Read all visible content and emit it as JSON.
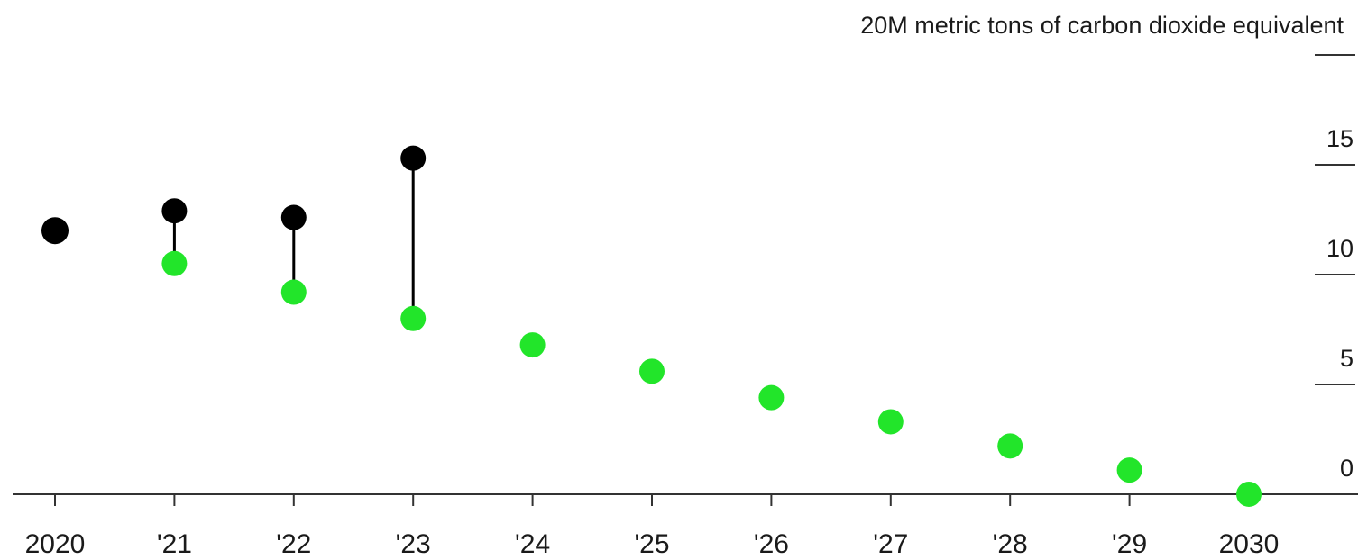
{
  "chart_data": {
    "type": "scatter",
    "title": "",
    "xlabel": "",
    "ylabel": "metric tons of carbon dioxide equivalent",
    "unit_label": "20M metric tons of carbon dioxide equivalent",
    "ylim": [
      0,
      20
    ],
    "yticks": [
      {
        "value": 20,
        "label": ""
      },
      {
        "value": 15,
        "label": "15"
      },
      {
        "value": 10,
        "label": "10"
      },
      {
        "value": 5,
        "label": "5"
      },
      {
        "value": 0,
        "label": "0"
      }
    ],
    "categories": [
      "2020",
      "'21",
      "'22",
      "'23",
      "'24",
      "'25",
      "'26",
      "'27",
      "'28",
      "'29",
      "2030"
    ],
    "series": [
      {
        "color": "#000000",
        "values": [
          12.0,
          12.9,
          12.6,
          15.3,
          null,
          null,
          null,
          null,
          null,
          null,
          null
        ]
      },
      {
        "color": "#22e52a",
        "values": [
          null,
          10.5,
          9.2,
          8.0,
          6.8,
          5.6,
          4.4,
          3.3,
          2.2,
          1.1,
          0.0
        ]
      }
    ],
    "grid": false,
    "legend": "none"
  }
}
